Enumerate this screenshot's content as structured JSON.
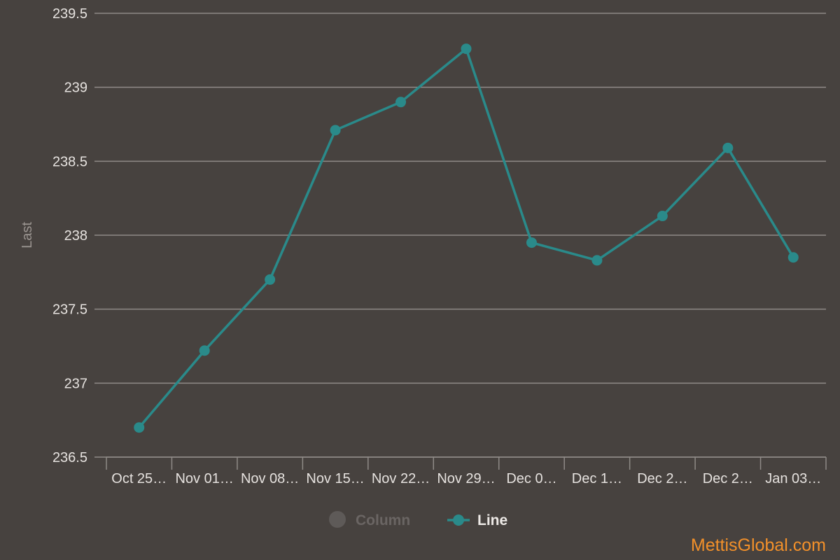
{
  "chart_data": {
    "type": "line",
    "title": "",
    "xlabel": "",
    "ylabel": "Last",
    "ylim": [
      236.5,
      239.5
    ],
    "ytick_values": [
      236.5,
      237,
      237.5,
      238,
      238.5,
      239,
      239.5
    ],
    "ytick_labels": [
      "236.5",
      "237",
      "237.5",
      "238",
      "238.5",
      "239",
      "239.5"
    ],
    "categories": [
      "Oct 25…",
      "Nov 01…",
      "Nov 08…",
      "Nov 15…",
      "Nov 22…",
      "Nov 29…",
      "Dec 0…",
      "Dec 1…",
      "Dec 2…",
      "Dec 2…",
      "Jan 03…"
    ],
    "series": [
      {
        "name": "Line",
        "color": "#2a8a8a",
        "values": [
          236.7,
          237.22,
          237.7,
          238.71,
          238.9,
          239.26,
          237.95,
          237.83,
          238.13,
          238.59,
          237.85
        ]
      }
    ],
    "legend": {
      "placement": "bottom-center",
      "items": [
        {
          "label": "Column",
          "marker": "circle",
          "color": "#5e5a58",
          "text_color": "#6a6563",
          "hidden": true
        },
        {
          "label": "Line",
          "marker": "line-circle",
          "color": "#2a8a8a",
          "text_color": "#eeeae7",
          "hidden": false
        }
      ]
    },
    "grid": true
  },
  "watermark": "MettisGlobal.com"
}
